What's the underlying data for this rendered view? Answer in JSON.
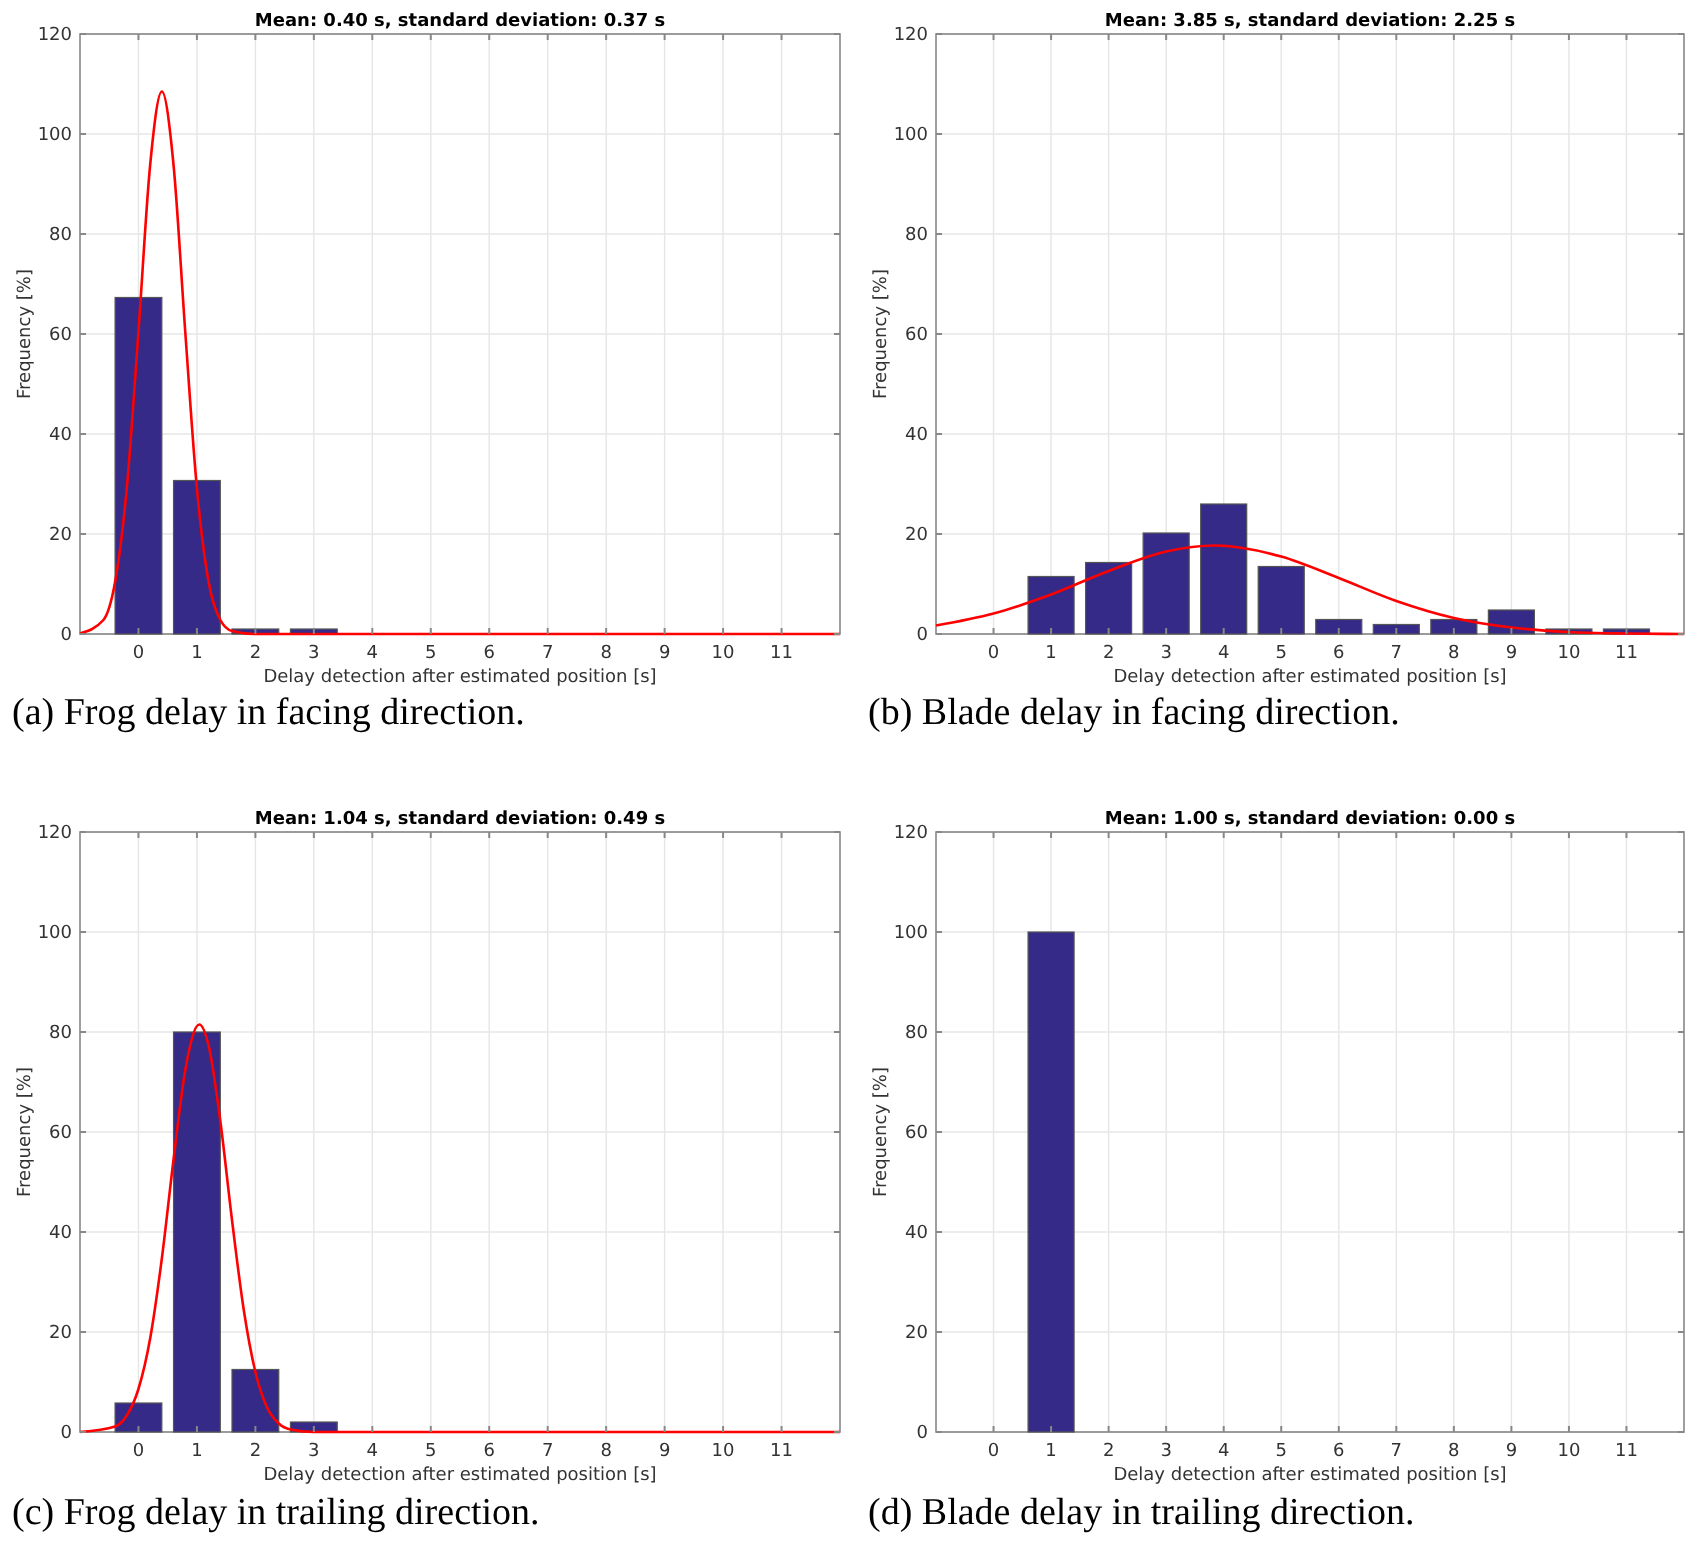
{
  "chart_data": [
    {
      "type": "bar",
      "title": "Mean: 0.40 s, standard deviation: 0.37 s",
      "xlabel": "Delay detection after estimated position [s]",
      "ylabel": "Frequency [%]",
      "annotations": [
        "(a) Frog delay in facing direction."
      ],
      "xlim": [
        -1,
        12
      ],
      "xticks": [
        0,
        1,
        2,
        3,
        4,
        5,
        6,
        7,
        8,
        9,
        10,
        11
      ],
      "ylim": [
        0,
        120
      ],
      "yticks": [
        0,
        20,
        40,
        60,
        80,
        100,
        120
      ],
      "grid": true,
      "series": [
        {
          "color": "#352a87",
          "x": [
            0,
            1,
            2,
            3
          ],
          "values": [
            67.3,
            30.7,
            1,
            1
          ]
        },
        {
          "type": "line",
          "color": "#ff0000",
          "x": [
            -1,
            -0.6,
            -0.4,
            -0.2,
            0,
            0.2,
            0.4,
            0.6,
            0.8,
            1,
            1.2,
            1.4,
            1.6,
            2,
            12
          ],
          "values": [
            0.1,
            2.8,
            10.4,
            29.1,
            60.5,
            93.8,
            108.5,
            93.8,
            60.5,
            29.1,
            10.4,
            2.8,
            0.6,
            0,
            0
          ]
        }
      ]
    },
    {
      "type": "bar",
      "title": "Mean: 3.85 s, standard deviation: 2.25 s",
      "xlabel": "Delay detection after estimated position [s]",
      "ylabel": "Frequency [%]",
      "annotations": [
        "(b) Blade delay in facing direction."
      ],
      "xlim": [
        -1,
        12
      ],
      "xticks": [
        0,
        1,
        2,
        3,
        4,
        5,
        6,
        7,
        8,
        9,
        10,
        11
      ],
      "ylim": [
        0,
        120
      ],
      "yticks": [
        0,
        20,
        40,
        60,
        80,
        100,
        120
      ],
      "grid": true,
      "series": [
        {
          "color": "#352a87",
          "x": [
            1,
            2,
            3,
            4,
            5,
            6,
            7,
            8,
            9,
            10,
            11
          ],
          "values": [
            11.5,
            14.3,
            20.2,
            26,
            13.5,
            2.9,
            1.9,
            2.9,
            4.8,
            1,
            1
          ]
        },
        {
          "type": "line",
          "color": "#ff0000",
          "x": [
            -1,
            0,
            1,
            2,
            3,
            3.85,
            5,
            6,
            7,
            8,
            9,
            10,
            11,
            12
          ],
          "values": [
            1.7,
            4.1,
            7.9,
            12.6,
            16.5,
            17.7,
            15.5,
            11.2,
            6.6,
            3.2,
            1.3,
            0.4,
            0.1,
            0
          ]
        }
      ]
    },
    {
      "type": "bar",
      "title": "Mean: 1.04 s, standard deviation: 0.49 s",
      "xlabel": "Delay detection after estimated position [s]",
      "ylabel": "Frequency [%]",
      "annotations": [
        "(c) Frog delay in trailing direction."
      ],
      "xlim": [
        -1,
        12
      ],
      "xticks": [
        0,
        1,
        2,
        3,
        4,
        5,
        6,
        7,
        8,
        9,
        10,
        11
      ],
      "ylim": [
        0,
        120
      ],
      "yticks": [
        0,
        20,
        40,
        60,
        80,
        100,
        120
      ],
      "grid": true,
      "series": [
        {
          "color": "#352a87",
          "x": [
            0,
            1,
            2,
            3
          ],
          "values": [
            5.8,
            80,
            12.5,
            2
          ]
        },
        {
          "type": "line",
          "color": "#ff0000",
          "x": [
            -1,
            -0.4,
            -0.2,
            0,
            0.2,
            0.4,
            0.6,
            0.8,
            1.04,
            1.2,
            1.4,
            1.6,
            1.8,
            2,
            2.2,
            2.4,
            2.6,
            3,
            12
          ],
          "values": [
            0,
            1.1,
            3.3,
            8.6,
            18.7,
            34.7,
            54.5,
            72.3,
            81.5,
            77.3,
            62.2,
            42.4,
            24.5,
            12,
            4.9,
            1.7,
            0.5,
            0,
            0
          ]
        }
      ]
    },
    {
      "type": "bar",
      "title": "Mean: 1.00 s, standard deviation: 0.00 s",
      "xlabel": "Delay detection after estimated position [s]",
      "ylabel": "Frequency [%]",
      "annotations": [
        "(d) Blade delay in trailing direction."
      ],
      "xlim": [
        -1,
        12
      ],
      "xticks": [
        0,
        1,
        2,
        3,
        4,
        5,
        6,
        7,
        8,
        9,
        10,
        11
      ],
      "ylim": [
        0,
        120
      ],
      "yticks": [
        0,
        20,
        40,
        60,
        80,
        100,
        120
      ],
      "grid": true,
      "series": [
        {
          "color": "#352a87",
          "x": [
            1
          ],
          "values": [
            100
          ]
        }
      ]
    }
  ]
}
